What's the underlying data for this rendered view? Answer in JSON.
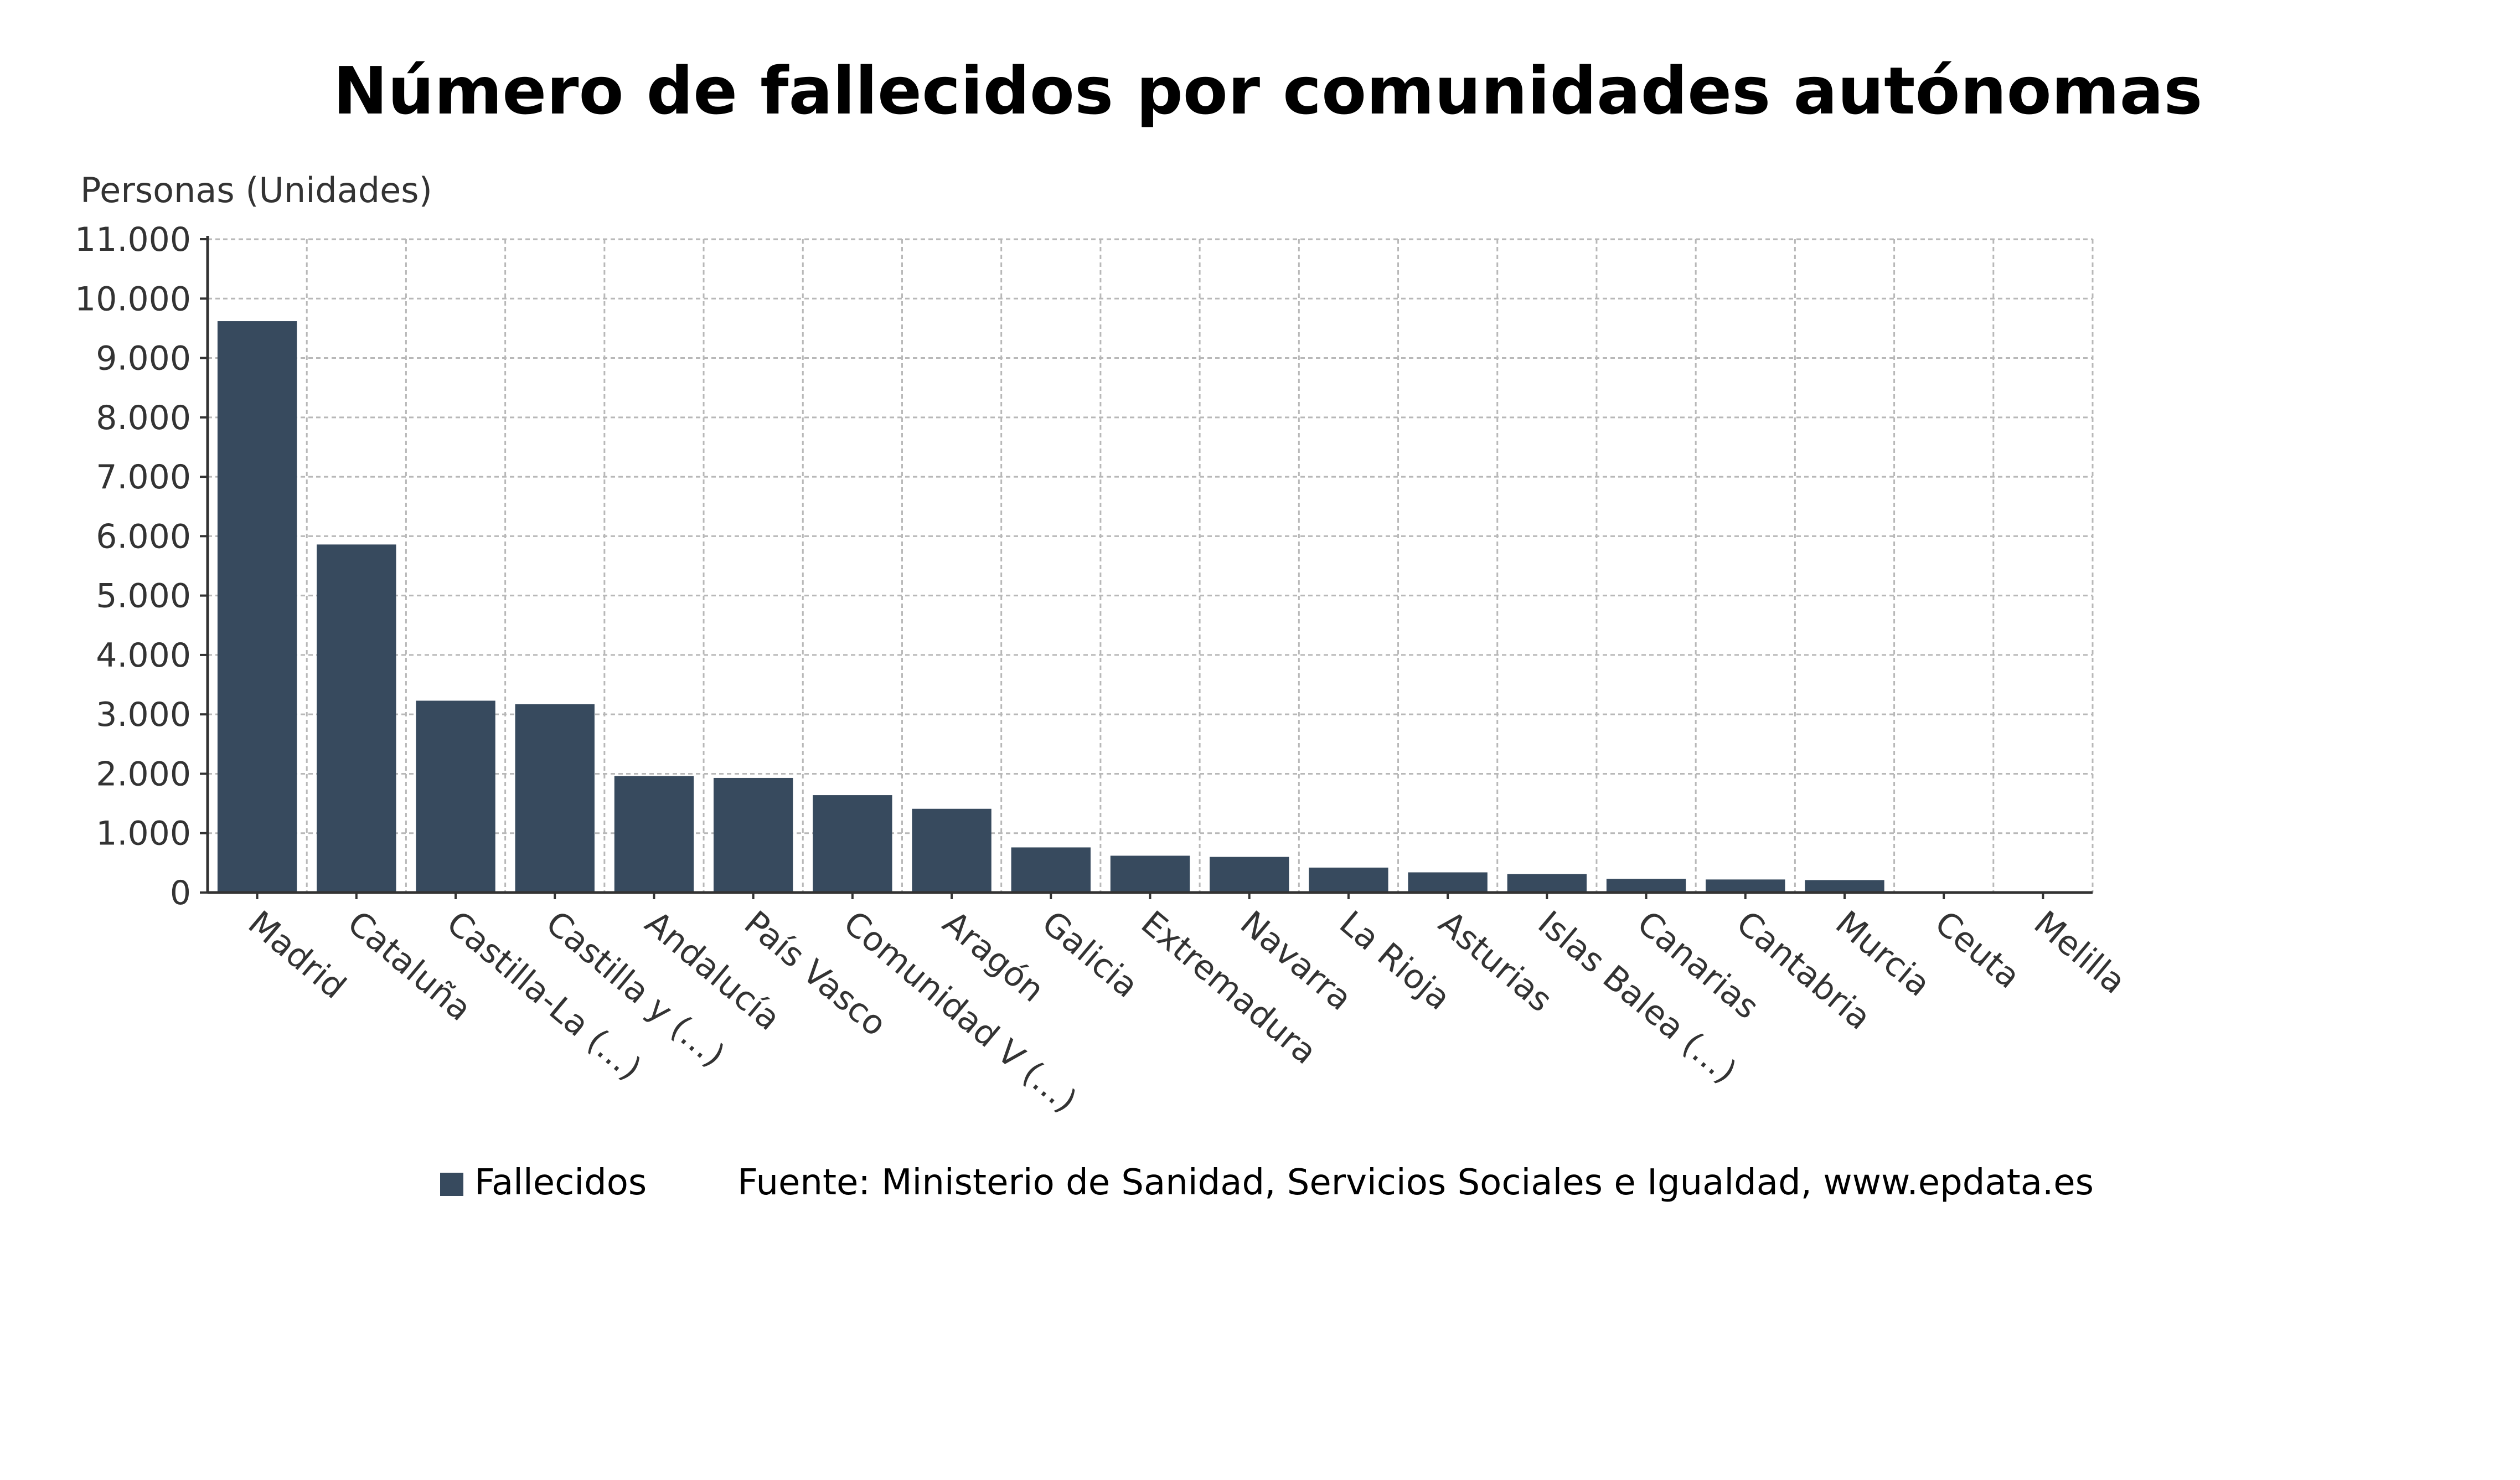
{
  "chart_data": {
    "type": "bar",
    "title": "Número de fallecidos por comunidades autónomas",
    "ylabel": "Personas (Unidades)",
    "xlabel": "",
    "ylim": [
      0,
      11000
    ],
    "yticks": [
      0,
      1000,
      2000,
      3000,
      4000,
      5000,
      6000,
      7000,
      8000,
      9000,
      10000,
      11000
    ],
    "ytick_labels": [
      "0",
      "1.000",
      "2.000",
      "3.000",
      "4.000",
      "5.000",
      "6.000",
      "7.000",
      "8.000",
      "9.000",
      "10.000",
      "11.000"
    ],
    "grid": true,
    "categories": [
      "Madrid",
      "Cataluña",
      "Castilla-La (...)",
      "Castilla y (...)",
      "Andalucía",
      "País Vasco",
      "Comunidad V (...)",
      "Aragón",
      "Galicia",
      "Extremadura",
      "Navarra",
      "La Rioja",
      "Asturias",
      "Islas Balea (...)",
      "Canarias",
      "Cantabria",
      "Murcia",
      "Ceuta",
      "Melilla"
    ],
    "series": [
      {
        "name": "Fallecidos",
        "color": "#374a5e",
        "values": [
          9620,
          5860,
          3230,
          3170,
          1960,
          1930,
          1640,
          1410,
          760,
          620,
          600,
          420,
          340,
          310,
          230,
          220,
          210,
          5,
          2
        ]
      }
    ],
    "legend_position": "bottom",
    "source": "Fuente: Ministerio de Sanidad, Servicios Sociales e Igualdad, www.epdata.es"
  }
}
